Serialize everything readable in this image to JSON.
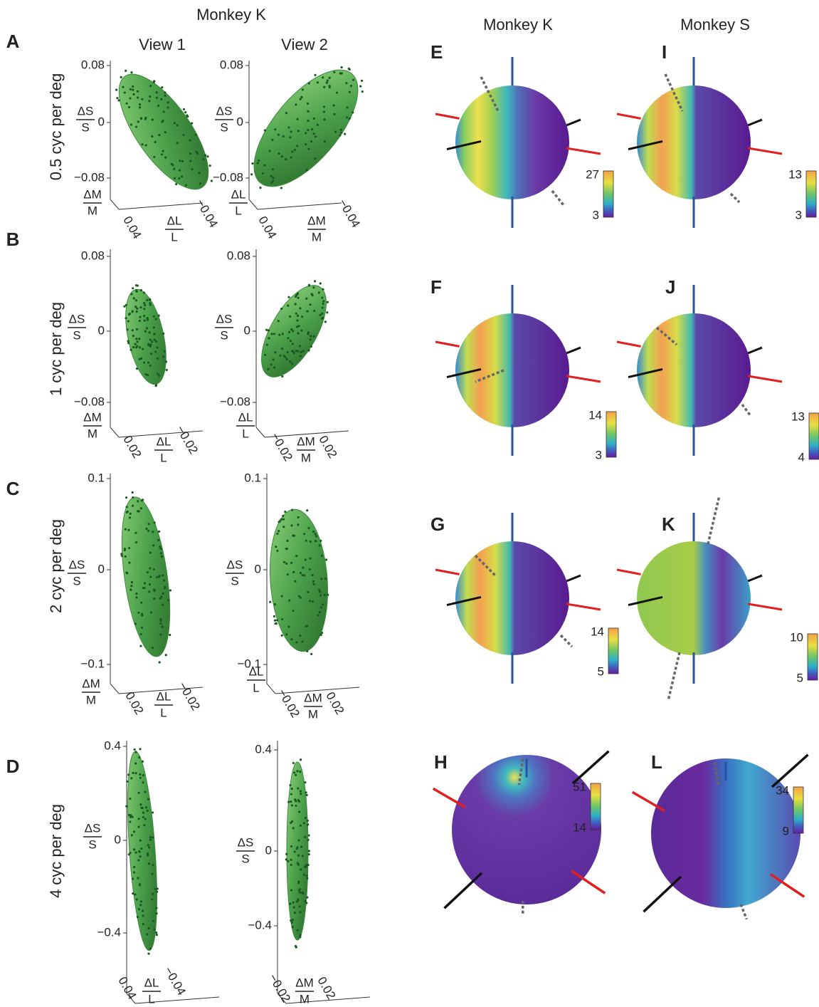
{
  "header": {
    "left_title": "Monkey K",
    "view_titles": [
      "View 1",
      "View 2"
    ],
    "sphere_titles": [
      "Monkey K",
      "Monkey S"
    ]
  },
  "rows": [
    {
      "letter": "A",
      "label": "0.5 cyc per deg",
      "views": [
        {
          "yticks": [
            "0.08",
            "0",
            "−0.08"
          ],
          "ylabel": {
            "num": "ΔS",
            "den": "S"
          },
          "depth": {
            "num": "ΔM",
            "den": "M"
          },
          "xticks": [
            "0.04",
            "−0.04"
          ],
          "xlabel": {
            "num": "ΔL",
            "den": "L"
          }
        },
        {
          "yticks": [
            "0.08",
            "0",
            "−0.08"
          ],
          "ylabel": {
            "num": "ΔS",
            "den": "S"
          },
          "depth": {
            "num": "ΔL",
            "den": "L"
          },
          "xticks": [
            "0.04",
            "−0.04"
          ],
          "xlabel": {
            "num": "ΔM",
            "den": "M"
          }
        }
      ]
    },
    {
      "letter": "B",
      "label": "1 cyc per deg",
      "views": [
        {
          "yticks": [
            "0.08",
            "0",
            "−0.08"
          ],
          "ylabel": {
            "num": "ΔS",
            "den": "S"
          },
          "depth": {
            "num": "ΔM",
            "den": "M"
          },
          "xticks": [
            "0.02",
            "−0.02"
          ],
          "xlabel": {
            "num": "ΔL",
            "den": "L"
          }
        },
        {
          "yticks": [
            "0.08",
            "0",
            "−0.08"
          ],
          "ylabel": {
            "num": "ΔS",
            "den": "S"
          },
          "depth": {
            "num": "ΔL",
            "den": "L"
          },
          "xticks": [
            "−0.02",
            "0.02"
          ],
          "xlabel": {
            "num": "ΔM",
            "den": "M"
          }
        }
      ]
    },
    {
      "letter": "C",
      "label": "2 cyc per deg",
      "views": [
        {
          "yticks": [
            "0.1",
            "0",
            "−0.1"
          ],
          "ylabel": {
            "num": "ΔS",
            "den": "S"
          },
          "depth": {
            "num": "ΔM",
            "den": "M"
          },
          "xticks": [
            "0.02",
            "−0.02"
          ],
          "xlabel": {
            "num": "ΔL",
            "den": "L"
          }
        },
        {
          "yticks": [
            "0.1",
            "0",
            "−0.1"
          ],
          "ylabel": {
            "num": "ΔS",
            "den": "S"
          },
          "depth": {
            "num": "ΔL",
            "den": "L"
          },
          "xticks": [
            "−0.02",
            "0.02"
          ],
          "xlabel": {
            "num": "ΔM",
            "den": "M"
          }
        }
      ]
    },
    {
      "letter": "D",
      "label": "4 cyc per deg",
      "views": [
        {
          "yticks": [
            "0.4",
            "0",
            "−0.4"
          ],
          "ylabel": {
            "num": "ΔS",
            "den": "S"
          },
          "xticks": [
            "0.04",
            "−0.04"
          ],
          "xlabel": {
            "num": "ΔL",
            "den": "L"
          }
        },
        {
          "yticks": [
            "0.4",
            "0",
            "−0.4"
          ],
          "ylabel": {
            "num": "ΔS",
            "den": "S"
          },
          "xticks": [
            "−0.02",
            "0.02"
          ],
          "xlabel": {
            "num": "ΔM",
            "den": "M"
          }
        }
      ]
    }
  ],
  "spheres": [
    {
      "letter": "E",
      "max": "27",
      "min": "3"
    },
    {
      "letter": "I",
      "max": "13",
      "min": "3"
    },
    {
      "letter": "F",
      "max": "14",
      "min": "3"
    },
    {
      "letter": "J",
      "max": "13",
      "min": "4"
    },
    {
      "letter": "G",
      "max": "14",
      "min": "5"
    },
    {
      "letter": "K",
      "max": "10",
      "min": "5"
    },
    {
      "letter": "H",
      "max": "51",
      "min": "14"
    },
    {
      "letter": "L",
      "max": "34",
      "min": "9"
    }
  ]
}
